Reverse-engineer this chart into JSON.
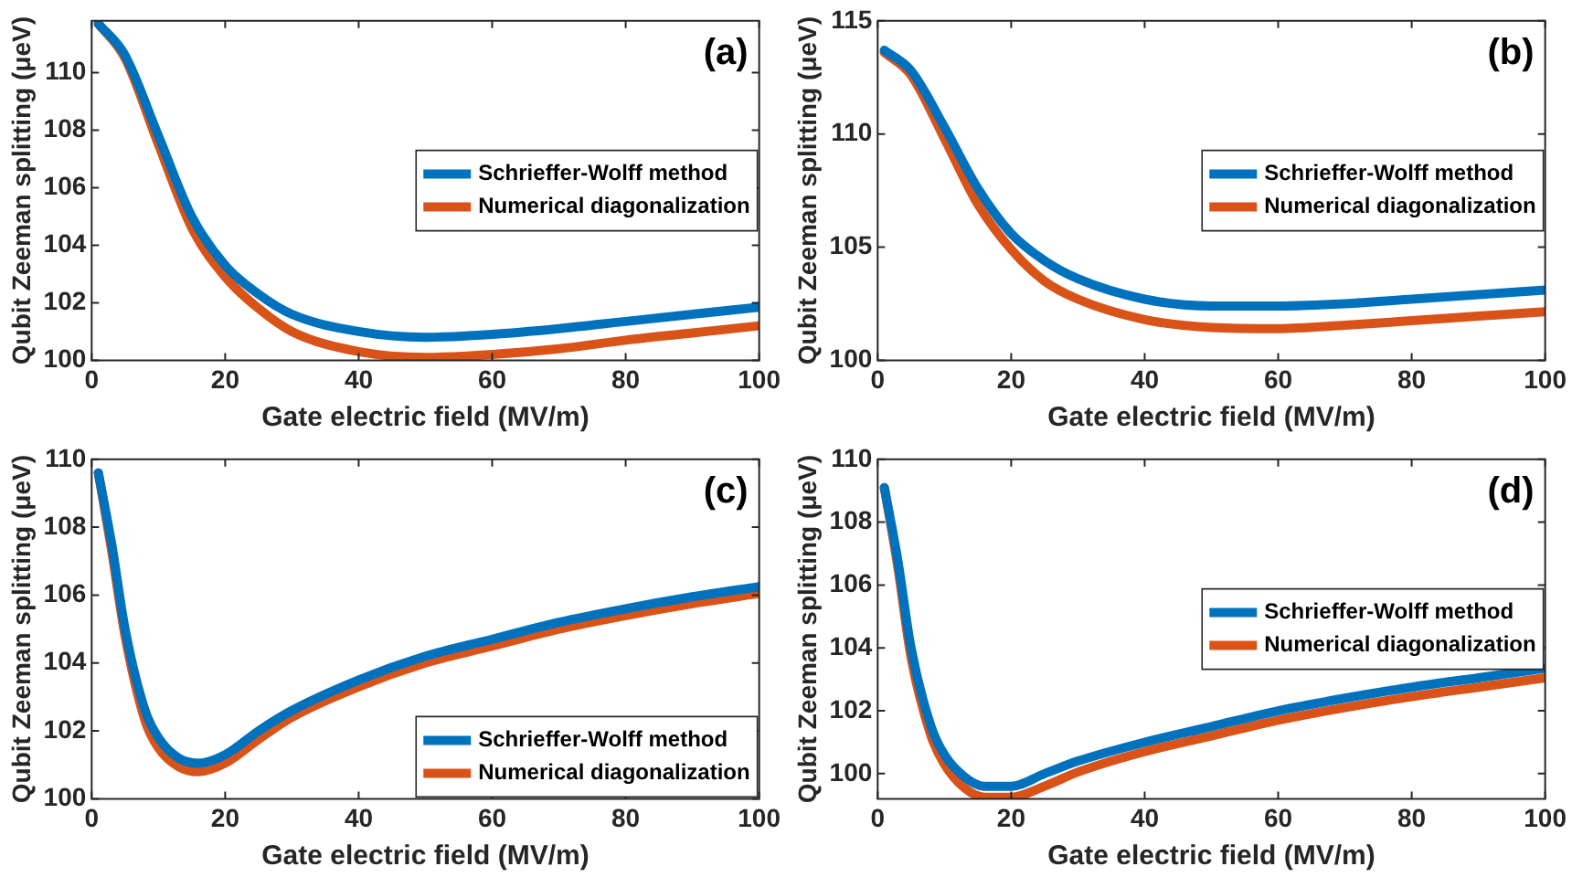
{
  "chart_data": [
    {
      "type": "line",
      "xlabel": "Gate electric field (MV/m)",
      "ylabel": "Qubit Zeeman splitting (μeV)",
      "annotations": [
        "(a)"
      ],
      "legend": "right",
      "grid": false,
      "marker": "none",
      "line_style": "solid",
      "xlim": [
        0,
        100
      ],
      "xticks": [
        0,
        20,
        40,
        60,
        80,
        100
      ],
      "ylim": [
        100,
        111.8
      ],
      "yticks": [
        100,
        102,
        104,
        106,
        108,
        110
      ],
      "x": [
        1,
        5,
        10,
        15,
        20,
        25,
        30,
        40,
        50,
        60,
        70,
        80,
        90,
        100
      ],
      "series": [
        {
          "name": "Schrieffer-Wolff method",
          "color": "#0072bd",
          "values": [
            111.7,
            110.6,
            107.8,
            105.0,
            103.3,
            102.3,
            101.6,
            101.0,
            100.8,
            100.9,
            101.1,
            101.35,
            101.6,
            101.85
          ]
        },
        {
          "name": "Numerical diagonalization",
          "color": "#d95319",
          "values": [
            111.7,
            110.5,
            107.5,
            104.6,
            102.9,
            101.8,
            101.0,
            100.3,
            100.1,
            100.2,
            100.4,
            100.7,
            100.95,
            101.2
          ]
        }
      ]
    },
    {
      "type": "line",
      "xlabel": "Gate electric field (MV/m)",
      "ylabel": "Qubit Zeeman splitting (μeV)",
      "annotations": [
        "(b)"
      ],
      "legend": "right",
      "grid": false,
      "marker": "none",
      "line_style": "solid",
      "xlim": [
        0,
        100
      ],
      "xticks": [
        0,
        20,
        40,
        60,
        80,
        100
      ],
      "ylim": [
        100,
        115
      ],
      "yticks": [
        100,
        105,
        110,
        115
      ],
      "x": [
        1,
        5,
        10,
        15,
        20,
        25,
        30,
        40,
        50,
        60,
        70,
        80,
        90,
        100
      ],
      "series": [
        {
          "name": "Schrieffer-Wolff method",
          "color": "#0072bd",
          "values": [
            113.7,
            112.8,
            110.3,
            107.6,
            105.6,
            104.4,
            103.6,
            102.7,
            102.4,
            102.4,
            102.5,
            102.7,
            102.9,
            103.1
          ]
        },
        {
          "name": "Numerical diagonalization",
          "color": "#d95319",
          "values": [
            113.6,
            112.6,
            109.8,
            106.9,
            104.9,
            103.5,
            102.7,
            101.8,
            101.45,
            101.4,
            101.55,
            101.75,
            101.95,
            102.15
          ]
        }
      ]
    },
    {
      "type": "line",
      "xlabel": "Gate electric field (MV/m)",
      "ylabel": "Qubit Zeeman splitting (μeV)",
      "annotations": [
        "(c)"
      ],
      "legend": "bottom right",
      "grid": false,
      "marker": "none",
      "line_style": "solid",
      "xlim": [
        0,
        100
      ],
      "xticks": [
        0,
        20,
        40,
        60,
        80,
        100
      ],
      "ylim": [
        100,
        110
      ],
      "yticks": [
        100,
        102,
        104,
        106,
        108,
        110
      ],
      "x": [
        1,
        3,
        5,
        8,
        10,
        13,
        16,
        20,
        25,
        30,
        40,
        50,
        60,
        70,
        80,
        90,
        100
      ],
      "series": [
        {
          "name": "Schrieffer-Wolff method",
          "color": "#0072bd",
          "values": [
            109.6,
            107.5,
            105.0,
            102.6,
            101.8,
            101.2,
            101.05,
            101.3,
            102.0,
            102.6,
            103.5,
            104.2,
            104.7,
            105.2,
            105.6,
            105.95,
            106.25
          ]
        },
        {
          "name": "Numerical diagonalization",
          "color": "#d95319",
          "values": [
            109.6,
            107.3,
            104.8,
            102.3,
            101.5,
            100.95,
            100.8,
            101.05,
            101.75,
            102.4,
            103.3,
            104.0,
            104.5,
            105.0,
            105.4,
            105.75,
            106.05
          ]
        }
      ]
    },
    {
      "type": "line",
      "xlabel": "Gate electric field (MV/m)",
      "ylabel": "Qubit Zeeman splitting (μeV)",
      "annotations": [
        "(d)"
      ],
      "legend": "right",
      "grid": false,
      "marker": "none",
      "line_style": "solid",
      "xlim": [
        0,
        100
      ],
      "xticks": [
        0,
        20,
        40,
        60,
        80,
        100
      ],
      "ylim": [
        99.2,
        110
      ],
      "yticks": [
        100,
        102,
        104,
        106,
        108,
        110
      ],
      "x": [
        1,
        3,
        5,
        8,
        10,
        13,
        16,
        20,
        25,
        30,
        40,
        50,
        60,
        70,
        80,
        90,
        100
      ],
      "series": [
        {
          "name": "Schrieffer-Wolff method",
          "color": "#0072bd",
          "values": [
            109.1,
            106.8,
            104.0,
            101.5,
            100.6,
            99.9,
            99.6,
            99.6,
            100.0,
            100.4,
            101.0,
            101.5,
            102.0,
            102.4,
            102.75,
            103.05,
            103.35
          ]
        },
        {
          "name": "Numerical diagonalization",
          "color": "#d95319",
          "values": [
            109.1,
            106.6,
            103.7,
            101.2,
            100.3,
            99.55,
            99.25,
            99.25,
            99.6,
            100.05,
            100.7,
            101.2,
            101.7,
            102.1,
            102.45,
            102.75,
            103.05
          ]
        }
      ]
    }
  ]
}
